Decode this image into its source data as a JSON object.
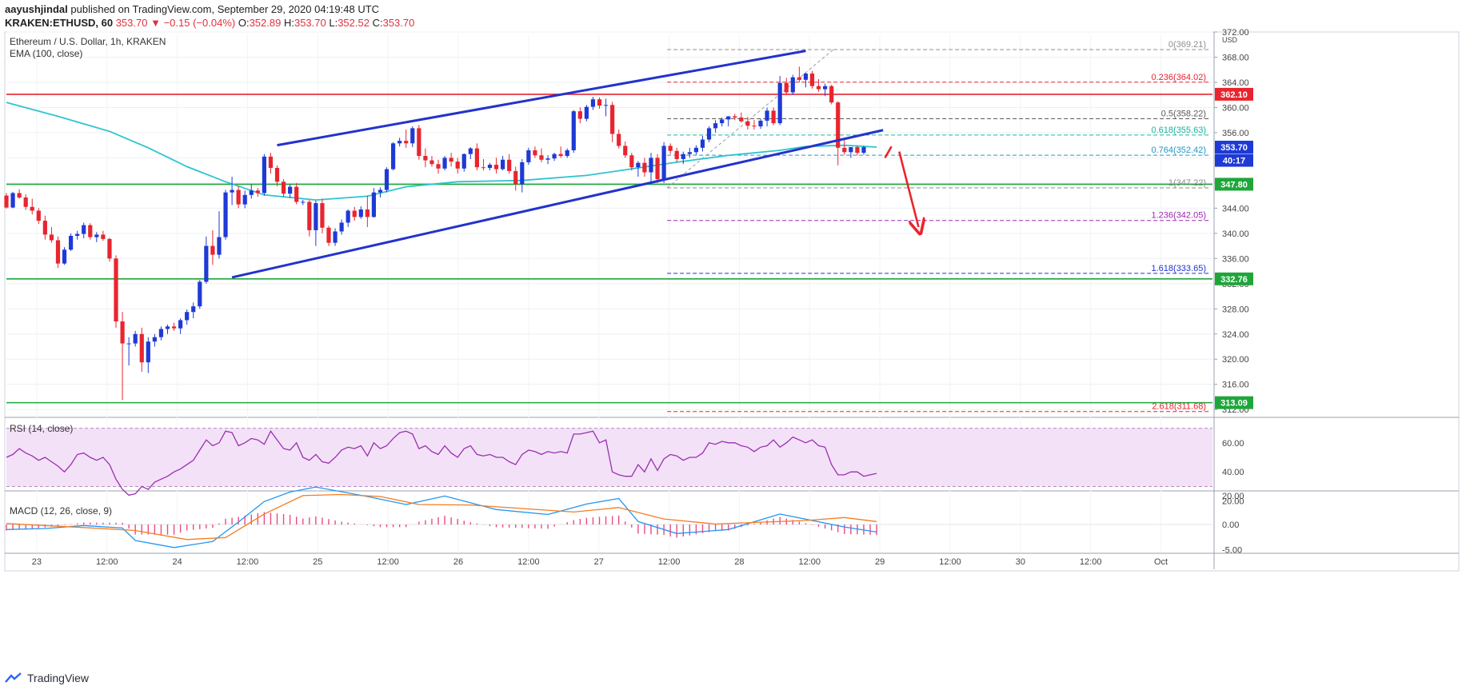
{
  "header": {
    "author": "aayushjindal",
    "published_text": "published on TradingView.com, September 29, 2020 04:19:48 UTC",
    "symbol": "KRAKEN:ETHUSD, 60",
    "last": "353.70",
    "change": "−0.15 (−0.04%)",
    "o_label": "O:",
    "o": "352.89",
    "h_label": "H:",
    "h": "353.70",
    "l_label": "L:",
    "l": "352.52",
    "c_label": "C:",
    "c": "353.70"
  },
  "legend": {
    "title": "Ethereum / U.S. Dollar, 1h, KRAKEN",
    "ema": "EMA (100, close)",
    "rsi": "RSI (14, close)",
    "macd": "MACD (12, 26, close, 9)"
  },
  "brand": "TradingView",
  "colors": {
    "up": "#1e3ad6",
    "down": "#e8252f",
    "ema": "#2ec4cf",
    "support": "#1ea63a",
    "resistance": "#e8252f",
    "channel": "#2233cc",
    "rsi": "#9b2fb0",
    "macd": "#2196f3",
    "signal": "#f57c1f",
    "hist": "#e91e63"
  },
  "chart_data": {
    "type": "candlestick",
    "title": "Ethereum / U.S. Dollar, 1h, KRAKEN",
    "y_axis_label": "USD",
    "ylim": [
      308,
      373
    ],
    "y_ticks": [
      "372.00",
      "368.00",
      "364.00",
      "360.00",
      "356.00",
      "352.00",
      "348.00",
      "344.00",
      "340.00",
      "336.00",
      "332.00",
      "328.00",
      "324.00",
      "320.00",
      "316.00",
      "312.00"
    ],
    "x_ticks": [
      "23",
      "12:00",
      "24",
      "12:00",
      "25",
      "12:00",
      "26",
      "12:00",
      "27",
      "12:00",
      "28",
      "12:00",
      "29",
      "12:00",
      "30",
      "12:00",
      "Oct"
    ],
    "grid": true,
    "price_labels": [
      {
        "text": "362.10",
        "value": 362.1,
        "color": "#e8252f"
      },
      {
        "text": "353.70",
        "value": 353.7,
        "color": "#1e3ad6"
      },
      {
        "text": "40:17",
        "value": 351.6,
        "color": "#1e3ad6"
      },
      {
        "text": "347.80",
        "value": 347.8,
        "color": "#1ea63a"
      },
      {
        "text": "332.76",
        "value": 332.76,
        "color": "#1ea63a"
      },
      {
        "text": "313.09",
        "value": 313.09,
        "color": "#1ea63a"
      }
    ],
    "horizontal_levels": [
      {
        "value": 362.1,
        "color": "#e8252f"
      },
      {
        "value": 347.8,
        "color": "#1ea63a"
      },
      {
        "value": 332.76,
        "color": "#1ea63a"
      },
      {
        "value": 313.09,
        "color": "#1ea63a"
      }
    ],
    "fibonacci": [
      {
        "label": "0(369.21)",
        "value": 369.21,
        "color": "#8f8f8f"
      },
      {
        "label": "0.236(364.02)",
        "value": 364.02,
        "color": "#e8252f"
      },
      {
        "label": "0.5(358.22)",
        "value": 358.22,
        "color": "#5a5a5a"
      },
      {
        "label": "0.618(355.63)",
        "value": 355.63,
        "color": "#18b39c"
      },
      {
        "label": "0.764(352.42)",
        "value": 352.42,
        "color": "#2196c8"
      },
      {
        "label": "1(347.22)",
        "value": 347.22,
        "color": "#8a8a8a"
      },
      {
        "label": "1.236(342.05)",
        "value": 342.05,
        "color": "#9c27b0"
      },
      {
        "label": "1.618(333.65)",
        "value": 333.65,
        "color": "#2233cc"
      },
      {
        "label": "2.618(311.68)",
        "value": 311.68,
        "color": "#e8252f"
      }
    ],
    "candles": [
      [
        346.0,
        346.4,
        343.9,
        344.1
      ],
      [
        344.1,
        346.6,
        344.0,
        346.4
      ],
      [
        346.4,
        347.0,
        345.5,
        345.7
      ],
      [
        345.7,
        346.2,
        343.7,
        344.2
      ],
      [
        344.2,
        345.5,
        343.0,
        343.6
      ],
      [
        343.6,
        344.0,
        341.5,
        342.0
      ],
      [
        342.0,
        342.8,
        339.0,
        339.8
      ],
      [
        339.8,
        341.0,
        338.5,
        338.9
      ],
      [
        338.9,
        339.5,
        334.5,
        335.2
      ],
      [
        335.2,
        337.8,
        335.0,
        337.4
      ],
      [
        337.4,
        340.0,
        337.2,
        339.6
      ],
      [
        339.6,
        340.4,
        339.0,
        339.9
      ],
      [
        339.9,
        341.7,
        339.2,
        341.3
      ],
      [
        341.3,
        341.6,
        339.0,
        339.4
      ],
      [
        339.4,
        340.2,
        338.6,
        339.8
      ],
      [
        339.8,
        340.4,
        338.8,
        339.1
      ],
      [
        339.1,
        339.3,
        335.5,
        336.0
      ],
      [
        336.0,
        336.5,
        325.0,
        326.0
      ],
      [
        326.0,
        327.5,
        313.5,
        322.5
      ],
      [
        322.5,
        323.5,
        319.0,
        322.5
      ],
      [
        322.5,
        324.5,
        322.0,
        324.0
      ],
      [
        324.0,
        325.0,
        318.0,
        319.5
      ],
      [
        319.5,
        323.5,
        317.8,
        322.8
      ],
      [
        322.8,
        324.0,
        322.0,
        323.5
      ],
      [
        323.5,
        325.2,
        323.0,
        324.8
      ],
      [
        324.8,
        325.5,
        324.0,
        325.2
      ],
      [
        325.2,
        325.8,
        324.5,
        324.9
      ],
      [
        324.9,
        326.5,
        324.0,
        326.2
      ],
      [
        326.2,
        327.9,
        325.5,
        327.5
      ],
      [
        327.5,
        329.0,
        326.5,
        328.4
      ],
      [
        328.4,
        332.6,
        328.0,
        332.3
      ],
      [
        332.3,
        339.5,
        332.0,
        338.0
      ],
      [
        338.0,
        340.5,
        335.0,
        336.6
      ],
      [
        336.6,
        343.5,
        336.0,
        339.4
      ],
      [
        339.4,
        346.9,
        339.0,
        346.5
      ],
      [
        346.5,
        349.0,
        344.5,
        346.9
      ],
      [
        346.9,
        347.5,
        344.0,
        344.6
      ],
      [
        344.6,
        346.8,
        344.0,
        346.1
      ],
      [
        346.1,
        347.8,
        345.5,
        346.8
      ],
      [
        346.8,
        347.2,
        345.8,
        346.4
      ],
      [
        346.4,
        352.6,
        346.0,
        352.2
      ],
      [
        352.2,
        352.8,
        349.5,
        350.4
      ],
      [
        350.4,
        350.8,
        347.5,
        348.2
      ],
      [
        348.2,
        348.6,
        345.8,
        346.3
      ],
      [
        346.3,
        347.8,
        345.6,
        347.4
      ],
      [
        347.4,
        348.0,
        344.6,
        345.0
      ],
      [
        345.0,
        345.3,
        344.5,
        345.0
      ],
      [
        345.0,
        345.3,
        339.5,
        340.5
      ],
      [
        340.5,
        345.2,
        338.0,
        344.8
      ],
      [
        344.8,
        345.5,
        340.0,
        340.9
      ],
      [
        340.9,
        341.2,
        338.0,
        338.5
      ],
      [
        338.5,
        340.8,
        338.0,
        340.3
      ],
      [
        340.3,
        342.2,
        339.8,
        341.7
      ],
      [
        341.7,
        343.8,
        341.0,
        343.6
      ],
      [
        343.6,
        344.2,
        342.0,
        342.6
      ],
      [
        342.6,
        344.3,
        342.3,
        343.8
      ],
      [
        343.8,
        346.0,
        341.0,
        342.6
      ],
      [
        342.6,
        347.2,
        342.5,
        346.5
      ],
      [
        346.5,
        347.3,
        345.7,
        346.9
      ],
      [
        346.9,
        350.5,
        346.5,
        350.2
      ],
      [
        350.2,
        354.5,
        350.0,
        354.3
      ],
      [
        354.3,
        355.2,
        353.8,
        354.7
      ],
      [
        354.7,
        356.5,
        353.6,
        354.3
      ],
      [
        354.3,
        357.0,
        353.7,
        356.7
      ],
      [
        356.7,
        357.2,
        351.7,
        352.3
      ],
      [
        352.3,
        353.5,
        350.5,
        351.6
      ],
      [
        351.6,
        352.3,
        350.6,
        351.0
      ],
      [
        351.0,
        351.7,
        349.5,
        350.3
      ],
      [
        350.3,
        352.3,
        350.0,
        352.0
      ],
      [
        352.0,
        352.8,
        350.6,
        351.4
      ],
      [
        351.4,
        352.0,
        349.5,
        350.3
      ],
      [
        350.3,
        352.7,
        349.8,
        352.6
      ],
      [
        352.6,
        353.7,
        351.8,
        353.5
      ],
      [
        353.5,
        354.3,
        350.0,
        350.5
      ],
      [
        350.5,
        351.8,
        350.0,
        350.4
      ],
      [
        350.4,
        351.2,
        350.0,
        350.9
      ],
      [
        350.9,
        352.0,
        349.5,
        350.2
      ],
      [
        350.2,
        352.3,
        350.0,
        351.7
      ],
      [
        351.7,
        352.6,
        349.5,
        349.9
      ],
      [
        349.9,
        350.6,
        346.8,
        347.8
      ],
      [
        347.8,
        351.8,
        346.5,
        351.3
      ],
      [
        351.3,
        353.6,
        350.9,
        353.2
      ],
      [
        353.2,
        353.8,
        352.0,
        352.4
      ],
      [
        352.4,
        353.5,
        351.3,
        351.7
      ],
      [
        351.7,
        352.4,
        351.0,
        351.9
      ],
      [
        351.9,
        352.8,
        351.5,
        352.6
      ],
      [
        352.6,
        353.8,
        352.0,
        352.3
      ],
      [
        352.3,
        353.5,
        352.0,
        353.2
      ],
      [
        353.2,
        359.6,
        352.8,
        359.4
      ],
      [
        359.4,
        360.0,
        357.5,
        358.2
      ],
      [
        358.2,
        360.4,
        357.8,
        360.1
      ],
      [
        360.1,
        361.7,
        359.6,
        361.3
      ],
      [
        361.3,
        361.6,
        359.8,
        360.3
      ],
      [
        360.3,
        361.4,
        358.6,
        360.4
      ],
      [
        360.4,
        360.9,
        354.5,
        355.8
      ],
      [
        355.8,
        356.5,
        353.5,
        353.9
      ],
      [
        353.9,
        354.6,
        352.0,
        352.4
      ],
      [
        352.4,
        352.8,
        350.0,
        350.5
      ],
      [
        350.5,
        351.5,
        349.0,
        351.2
      ],
      [
        351.2,
        352.0,
        349.0,
        349.7
      ],
      [
        349.7,
        352.8,
        348.0,
        352.0
      ],
      [
        352.0,
        352.6,
        348.0,
        348.6
      ],
      [
        348.6,
        354.5,
        348.0,
        353.9
      ],
      [
        353.9,
        354.3,
        352.6,
        353.1
      ],
      [
        353.1,
        353.6,
        351.3,
        351.8
      ],
      [
        351.8,
        353.0,
        351.0,
        352.6
      ],
      [
        352.6,
        353.6,
        352.0,
        352.9
      ],
      [
        352.9,
        354.0,
        352.5,
        353.6
      ],
      [
        353.6,
        355.5,
        353.0,
        354.9
      ],
      [
        354.9,
        357.0,
        354.5,
        356.7
      ],
      [
        356.7,
        358.0,
        356.0,
        357.5
      ],
      [
        357.5,
        358.4,
        357.0,
        358.1
      ],
      [
        358.1,
        358.6,
        357.0,
        358.6
      ],
      [
        358.6,
        359.0,
        358.0,
        358.4
      ],
      [
        358.4,
        359.2,
        357.6,
        357.8
      ],
      [
        357.8,
        358.5,
        356.5,
        357.1
      ],
      [
        357.1,
        358.0,
        356.5,
        357.0
      ],
      [
        357.0,
        358.2,
        356.6,
        357.9
      ],
      [
        357.9,
        360.0,
        357.0,
        359.5
      ],
      [
        359.5,
        360.0,
        357.2,
        357.5
      ],
      [
        357.5,
        365.0,
        357.2,
        363.9
      ],
      [
        363.9,
        364.7,
        362.0,
        362.4
      ],
      [
        362.4,
        365.2,
        362.0,
        364.8
      ],
      [
        364.8,
        366.5,
        364.0,
        364.4
      ],
      [
        364.4,
        365.5,
        363.2,
        365.4
      ],
      [
        365.4,
        365.8,
        363.0,
        363.4
      ],
      [
        363.4,
        364.5,
        362.5,
        362.9
      ],
      [
        362.9,
        363.8,
        361.8,
        363.4
      ],
      [
        363.4,
        363.6,
        360.5,
        360.8
      ],
      [
        360.8,
        361.0,
        350.8,
        353.6
      ],
      [
        353.6,
        354.8,
        352.5,
        352.9
      ],
      [
        352.9,
        353.7,
        352.0,
        353.7
      ],
      [
        353.7,
        354.0,
        352.4,
        352.8
      ],
      [
        352.8,
        353.9,
        352.5,
        353.7
      ]
    ],
    "ema_100": [
      [
        0,
        360.8
      ],
      [
        8,
        358.6
      ],
      [
        16,
        356.2
      ],
      [
        22,
        353.6
      ],
      [
        28,
        350.6
      ],
      [
        34,
        348.2
      ],
      [
        40,
        346.1
      ],
      [
        48,
        345.3
      ],
      [
        56,
        345.9
      ],
      [
        62,
        347.4
      ],
      [
        70,
        348.2
      ],
      [
        80,
        348.4
      ],
      [
        90,
        349.2
      ],
      [
        96,
        350.1
      ],
      [
        104,
        351.3
      ],
      [
        112,
        352.4
      ],
      [
        120,
        353.2
      ],
      [
        124,
        353.8
      ],
      [
        130,
        354.0
      ],
      [
        135,
        353.7
      ]
    ],
    "annotations": {
      "channel_upper": [
        [
          42,
          354.0
        ],
        [
          124,
          369.0
        ]
      ],
      "channel_lower": [
        [
          35,
          333.0
        ],
        [
          136,
          356.4
        ]
      ],
      "arrow_bounce_from": [
        136.3,
        352.0
      ],
      "arrow_bounce_to": [
        137.3,
        353.8
      ],
      "arrow_drop_from": [
        138.5,
        353.0
      ],
      "arrow_drop_to": [
        141.5,
        341.0
      ]
    },
    "rsi": {
      "ylim": [
        16,
        72
      ],
      "y_ticks": [
        "60.00",
        "40.00",
        "20.00"
      ],
      "band": [
        30,
        70
      ],
      "values": [
        50,
        52,
        56,
        53,
        51,
        48,
        50,
        47,
        44,
        40,
        45,
        52,
        53,
        50,
        48,
        50,
        45,
        35,
        28,
        24,
        25,
        30,
        28,
        33,
        35,
        37,
        40,
        42,
        45,
        48,
        55,
        62,
        58,
        60,
        68,
        67,
        58,
        60,
        63,
        62,
        59,
        68,
        62,
        56,
        55,
        60,
        50,
        48,
        52,
        47,
        46,
        50,
        55,
        57,
        56,
        58,
        51,
        60,
        56,
        58,
        63,
        67,
        68,
        66,
        56,
        58,
        54,
        52,
        58,
        53,
        50,
        56,
        58,
        52,
        51,
        52,
        50,
        50,
        47,
        45,
        52,
        55,
        54,
        52,
        54,
        53,
        54,
        53,
        66,
        66,
        67,
        68,
        60,
        62,
        40,
        38,
        37,
        37,
        45,
        40,
        49,
        41,
        49,
        52,
        51,
        48,
        50,
        50,
        53,
        60,
        59,
        61,
        60,
        60,
        58,
        57,
        54,
        57,
        58,
        62,
        57,
        60,
        64,
        62,
        60,
        62,
        58,
        57,
        45,
        38,
        38,
        40,
        40,
        37,
        38,
        39
      ]
    },
    "macd": {
      "ylim": [
        -6,
        14
      ],
      "y_ticks": [
        "20.00",
        "0.00",
        "-5.00"
      ],
      "macd": [
        [
          0,
          -1.0
        ],
        [
          6,
          -0.8
        ],
        [
          12,
          -0.2
        ],
        [
          18,
          -0.7
        ],
        [
          20,
          -3.2
        ],
        [
          26,
          -4.6
        ],
        [
          32,
          -3.4
        ],
        [
          36,
          0.5
        ],
        [
          40,
          4.6
        ],
        [
          44,
          6.5
        ],
        [
          48,
          7.5
        ],
        [
          56,
          5.6
        ],
        [
          62,
          4.0
        ],
        [
          68,
          5.7
        ],
        [
          76,
          3.0
        ],
        [
          84,
          2.0
        ],
        [
          90,
          4.1
        ],
        [
          95,
          5.2
        ],
        [
          98,
          0.6
        ],
        [
          104,
          -1.8
        ],
        [
          112,
          -1.0
        ],
        [
          120,
          2.1
        ],
        [
          130,
          -0.5
        ],
        [
          135,
          -1.5
        ]
      ],
      "signal": [
        [
          0,
          0.2
        ],
        [
          6,
          -0.2
        ],
        [
          12,
          -0.6
        ],
        [
          20,
          -1.2
        ],
        [
          28,
          -3.0
        ],
        [
          34,
          -2.6
        ],
        [
          40,
          2.1
        ],
        [
          46,
          5.8
        ],
        [
          52,
          6.0
        ],
        [
          58,
          5.6
        ],
        [
          64,
          4.0
        ],
        [
          72,
          3.9
        ],
        [
          80,
          3.2
        ],
        [
          88,
          2.5
        ],
        [
          95,
          3.4
        ],
        [
          102,
          1.1
        ],
        [
          110,
          0.1
        ],
        [
          118,
          0.5
        ],
        [
          124,
          0.8
        ],
        [
          130,
          1.4
        ],
        [
          135,
          0.6
        ]
      ],
      "histogram_note": "histogram of macd minus signal"
    }
  }
}
